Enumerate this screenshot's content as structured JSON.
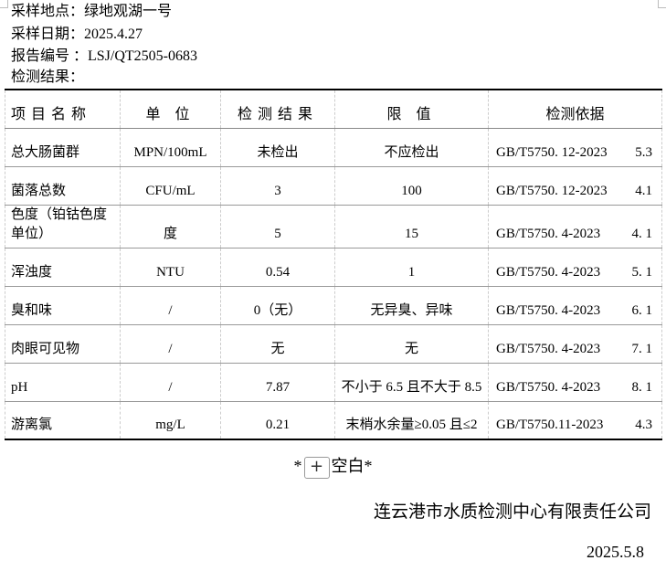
{
  "header": {
    "sampling_site": "采样地点：绿地观湖一号",
    "sampling_date": "采样日期：2025.4.27",
    "report_no": "报告编号 ：LSJ/QT2505-0683",
    "results_label": "检测结果："
  },
  "table": {
    "columns": [
      "项目名称",
      "单 位",
      "检测结果",
      "限 值",
      "检测依据"
    ],
    "rows": [
      {
        "name": "总大肠菌群",
        "unit": "MPN/100mL",
        "result": "未检出",
        "limit": "不应检出",
        "basis": "GB/T5750. 12-2023",
        "clause": "5.3"
      },
      {
        "name": "菌落总数",
        "unit": "CFU/mL",
        "result": "3",
        "limit": "100",
        "basis": "GB/T5750. 12-2023",
        "clause": "4.1"
      },
      {
        "name": "色度（铂钴色度单位）",
        "unit": "度",
        "result": "5",
        "limit": "15",
        "basis": "GB/T5750. 4-2023",
        "clause": "4. 1"
      },
      {
        "name": "浑浊度",
        "unit": "NTU",
        "result": "0.54",
        "limit": "1",
        "basis": "GB/T5750. 4-2023",
        "clause": "5. 1"
      },
      {
        "name": "臭和味",
        "unit": "/",
        "result": "0（无）",
        "limit": "无异臭、异味",
        "basis": "GB/T5750. 4-2023",
        "clause": "6. 1"
      },
      {
        "name": "肉眼可见物",
        "unit": "/",
        "result": "无",
        "limit": "无",
        "basis": "GB/T5750. 4-2023",
        "clause": "7. 1"
      },
      {
        "name": "pH",
        "unit": "/",
        "result": "7.87",
        "limit": "不小于 6.5 且不大于 8.5",
        "basis": "GB/T5750. 4-2023",
        "clause": "8. 1"
      },
      {
        "name": "游离氯",
        "unit": "mg/L",
        "result": "0.21",
        "limit": "末梢水余量≥0.05 且≤2",
        "basis": "GB/T5750.11-2023",
        "clause": "4.3"
      }
    ]
  },
  "footer": {
    "blank_prefix": "*",
    "blank_button": "+",
    "blank_suffix": "空白*",
    "company": "连云港市水质检测中心有限责任公司",
    "date": "2025.5.8"
  }
}
